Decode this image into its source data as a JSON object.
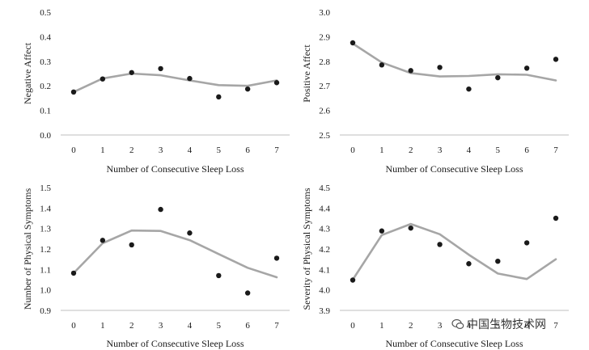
{
  "chart_data": [
    {
      "type": "line",
      "xlabel": "Number of Consecutive Sleep Loss",
      "ylabel": "Negative Affect",
      "x": [
        0,
        1,
        2,
        3,
        4,
        5,
        6,
        7
      ],
      "ylim": [
        0.0,
        0.5
      ],
      "yticks": [
        "0.0",
        "0.1",
        "0.2",
        "0.3",
        "0.4",
        "0.5"
      ],
      "points": [
        0.175,
        0.228,
        0.254,
        0.27,
        0.23,
        0.155,
        0.187,
        0.213
      ],
      "fitted": [
        0.175,
        0.23,
        0.25,
        0.243,
        0.222,
        0.203,
        0.2,
        0.222
      ]
    },
    {
      "type": "line",
      "xlabel": "Number of Consecutive Sleep Loss",
      "ylabel": "Positive Affect",
      "x": [
        0,
        1,
        2,
        3,
        4,
        5,
        6,
        7
      ],
      "ylim": [
        2.5,
        3.0
      ],
      "yticks": [
        "2.5",
        "2.6",
        "2.7",
        "2.8",
        "2.9",
        "3.0"
      ],
      "points": [
        2.875,
        2.785,
        2.762,
        2.775,
        2.687,
        2.733,
        2.772,
        2.808
      ],
      "fitted": [
        2.872,
        2.795,
        2.752,
        2.738,
        2.74,
        2.747,
        2.745,
        2.722
      ]
    },
    {
      "type": "line",
      "xlabel": "Number of Consecutive Sleep Loss",
      "ylabel": "Number of Physical Symptoms",
      "x": [
        0,
        1,
        2,
        3,
        4,
        5,
        6,
        7
      ],
      "ylim": [
        0.9,
        1.5
      ],
      "yticks": [
        "0.9",
        "1.0",
        "1.1",
        "1.2",
        "1.3",
        "1.4",
        "1.5"
      ],
      "points": [
        1.082,
        1.242,
        1.22,
        1.393,
        1.278,
        1.07,
        0.985,
        1.155
      ],
      "fitted": [
        1.082,
        1.228,
        1.29,
        1.288,
        1.243,
        1.175,
        1.108,
        1.062
      ]
    },
    {
      "type": "line",
      "xlabel": "Number of Consecutive Sleep Loss",
      "ylabel": "Severity of Physical Symptoms",
      "x": [
        0,
        1,
        2,
        3,
        4,
        5,
        6,
        7
      ],
      "ylim": [
        3.9,
        4.5
      ],
      "yticks": [
        "3.9",
        "4.0",
        "4.1",
        "4.2",
        "4.3",
        "4.4",
        "4.5"
      ],
      "points": [
        4.048,
        4.288,
        4.302,
        4.222,
        4.128,
        4.14,
        4.23,
        4.35
      ],
      "fitted": [
        4.05,
        4.268,
        4.322,
        4.272,
        4.172,
        4.08,
        4.053,
        4.15
      ]
    }
  ],
  "colors": {
    "line": "#a6a6a6",
    "point": "#1a1a1a",
    "axis": "#bfbfbf"
  },
  "watermark": {
    "icon": "wechat-icon",
    "text": "中国生物技术网"
  }
}
